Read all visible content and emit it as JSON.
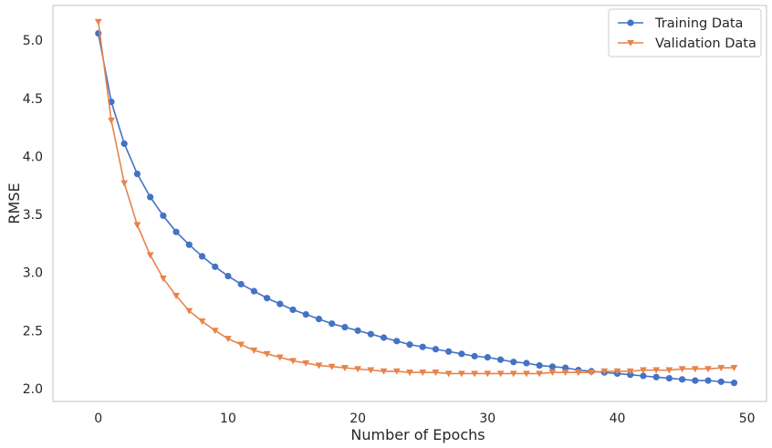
{
  "chart_data": {
    "type": "line",
    "title": "",
    "xlabel": "Number of Epochs",
    "ylabel": "RMSE",
    "xlim": [
      -3.5,
      51.5
    ],
    "ylim": [
      1.89,
      5.3
    ],
    "xticks": [
      0,
      10,
      20,
      30,
      40,
      50
    ],
    "yticks": [
      2.0,
      2.5,
      3.0,
      3.5,
      4.0,
      4.5,
      5.0
    ],
    "xtick_labels": [
      "0",
      "10",
      "20",
      "30",
      "40",
      "50"
    ],
    "ytick_labels": [
      "2.0",
      "2.5",
      "3.0",
      "3.5",
      "4.0",
      "4.5",
      "5.0"
    ],
    "grid": false,
    "legend_position": "top-right",
    "x": [
      0,
      1,
      2,
      3,
      4,
      5,
      6,
      7,
      8,
      9,
      10,
      11,
      12,
      13,
      14,
      15,
      16,
      17,
      18,
      19,
      20,
      21,
      22,
      23,
      24,
      25,
      26,
      27,
      28,
      29,
      30,
      31,
      32,
      33,
      34,
      35,
      36,
      37,
      38,
      39,
      40,
      41,
      42,
      43,
      44,
      45,
      46,
      47,
      48,
      49
    ],
    "series": [
      {
        "name": "Training Data",
        "color": "#4472c4",
        "marker": "circle",
        "values": [
          5.06,
          4.47,
          4.11,
          3.85,
          3.65,
          3.49,
          3.35,
          3.24,
          3.14,
          3.05,
          2.97,
          2.9,
          2.84,
          2.78,
          2.73,
          2.68,
          2.64,
          2.6,
          2.56,
          2.53,
          2.5,
          2.47,
          2.44,
          2.41,
          2.38,
          2.36,
          2.34,
          2.32,
          2.3,
          2.28,
          2.27,
          2.25,
          2.23,
          2.22,
          2.2,
          2.19,
          2.18,
          2.16,
          2.15,
          2.14,
          2.13,
          2.12,
          2.11,
          2.1,
          2.09,
          2.08,
          2.07,
          2.07,
          2.06,
          2.05
        ]
      },
      {
        "name": "Validation Data",
        "color": "#e8834a",
        "marker": "triangle-down",
        "values": [
          5.16,
          4.31,
          3.77,
          3.41,
          3.15,
          2.95,
          2.8,
          2.67,
          2.58,
          2.5,
          2.43,
          2.38,
          2.33,
          2.3,
          2.27,
          2.24,
          2.22,
          2.2,
          2.19,
          2.18,
          2.17,
          2.16,
          2.15,
          2.15,
          2.14,
          2.14,
          2.14,
          2.13,
          2.13,
          2.13,
          2.13,
          2.13,
          2.13,
          2.13,
          2.13,
          2.14,
          2.14,
          2.14,
          2.14,
          2.15,
          2.15,
          2.15,
          2.16,
          2.16,
          2.16,
          2.17,
          2.17,
          2.17,
          2.18,
          2.18
        ]
      }
    ]
  }
}
